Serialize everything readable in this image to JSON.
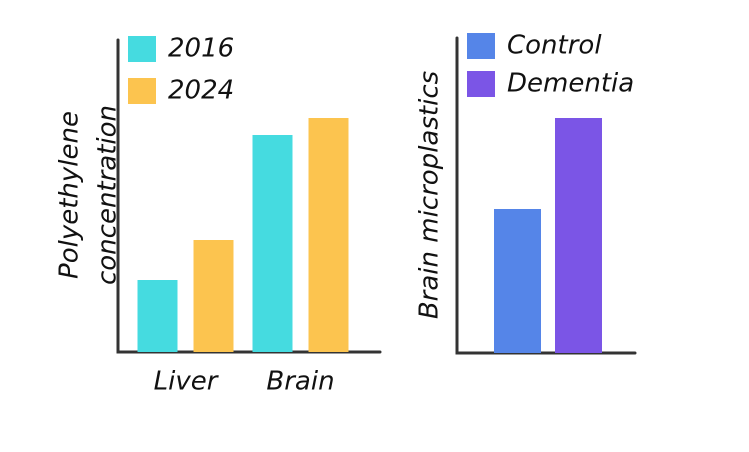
{
  "chart_data": [
    {
      "type": "bar",
      "ylabel": [
        "Polyethylene",
        "concentration"
      ],
      "categories": [
        "Liver",
        "Brain"
      ],
      "series": [
        {
          "name": "2016",
          "color": "#45dbe0",
          "values": [
            72,
            217
          ]
        },
        {
          "name": "2024",
          "color": "#fcc44f",
          "values": [
            112,
            234
          ]
        }
      ],
      "ylim": [
        0,
        312
      ],
      "legend": "upper left"
    },
    {
      "type": "bar",
      "ylabel": [
        "Brain microplastics"
      ],
      "categories": [
        null
      ],
      "series": [
        {
          "name": "Control",
          "color": "#5585e8",
          "values": [
            144
          ]
        },
        {
          "name": "Dementia",
          "color": "#7b55e6",
          "values": [
            235
          ]
        }
      ],
      "ylim": [
        0,
        315
      ],
      "legend": "upper left"
    }
  ]
}
